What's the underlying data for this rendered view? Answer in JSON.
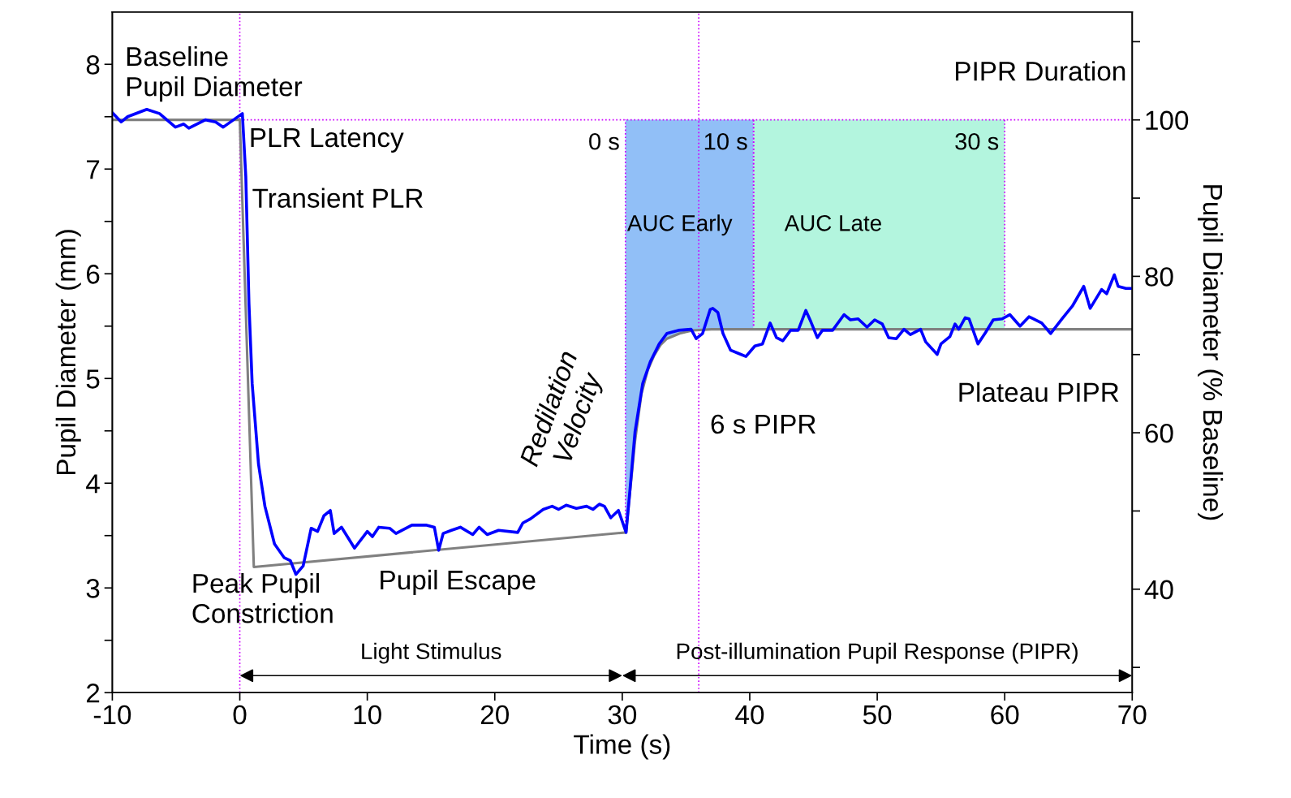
{
  "chart_data": {
    "type": "line",
    "xlabel": "Time (s)",
    "ylabel": "Pupil Diameter (mm)",
    "y2label": "Pupil Diameter (% Baseline)",
    "xlim": [
      -10,
      70
    ],
    "xticks": [
      -10,
      0,
      10,
      20,
      30,
      40,
      50,
      60,
      70
    ],
    "ylim": [
      2,
      8.5
    ],
    "yticks": [
      2,
      {
        "value": 2.5,
        "label": null
      },
      3,
      {
        "value": 3.5,
        "label": null
      },
      4,
      {
        "value": 4.5,
        "label": null
      },
      5,
      {
        "value": 5.5,
        "label": null
      },
      6,
      {
        "value": 6.5,
        "label": null
      },
      7,
      {
        "value": 7.5,
        "label": null
      },
      8
    ],
    "y2lim": [
      26.77,
      113.8
    ],
    "y2ticks": [
      {
        "value": 30,
        "label": null
      },
      40,
      {
        "value": 50,
        "label": null
      },
      60,
      {
        "value": 70,
        "label": null
      },
      80,
      {
        "value": 90,
        "label": null
      },
      100,
      {
        "value": 110,
        "label": null
      }
    ],
    "grid": false,
    "legend": false,
    "line_style": "solid",
    "marker": "none",
    "series": [
      {
        "color": "#808080",
        "x": [
          -10,
          0,
          1.1,
          30.3,
          31.0,
          31.5,
          32.0,
          32.5,
          33.0,
          33.5,
          34.5,
          35.5,
          37,
          70
        ],
        "values": [
          7.47,
          7.47,
          3.2,
          3.53,
          4.4,
          4.85,
          5.08,
          5.22,
          5.32,
          5.38,
          5.43,
          5.46,
          5.47,
          5.47
        ]
      },
      {
        "color": "#0000ff",
        "x": [
          -9.94,
          -9.3,
          -8.8,
          -7.3,
          -6.3,
          -5.05,
          -4.4,
          -4.0,
          -2.7,
          -1.9,
          -1.3,
          0.2,
          0.47,
          0.72,
          0.97,
          1.47,
          1.97,
          2.72,
          3.47,
          3.97,
          4.4,
          4.97,
          5.6,
          6.1,
          6.6,
          7.1,
          7.4,
          7.98,
          9.0,
          10.0,
          10.4,
          10.9,
          11.75,
          12.25,
          13.5,
          14.6,
          15.26,
          15.6,
          15.95,
          16.6,
          17.3,
          18.27,
          18.77,
          19.4,
          20.3,
          21.8,
          22.2,
          22.8,
          23.8,
          24.5,
          25.0,
          25.6,
          26.4,
          27.2,
          27.7,
          28.2,
          28.6,
          29.1,
          29.7,
          30.3,
          30.6,
          31.0,
          31.6,
          32.2,
          32.9,
          33.5,
          34.4,
          35.4,
          35.8,
          36.3,
          36.9,
          37.1,
          37.5,
          37.9,
          38.5,
          39.1,
          39.7,
          40.4,
          41.0,
          41.6,
          42.1,
          42.6,
          43.2,
          43.8,
          44.4,
          44.8,
          45.3,
          45.7,
          46.5,
          47.4,
          47.9,
          48.5,
          49.2,
          49.8,
          50.4,
          50.9,
          51.5,
          52.1,
          52.6,
          53.4,
          53.8,
          54.7,
          55.0,
          55.7,
          56.1,
          56.4,
          56.9,
          57.2,
          57.9,
          58.5,
          59.1,
          59.8,
          60.4,
          61.2,
          61.9,
          62.9,
          63.6,
          64.5,
          65.3,
          66.2,
          66.7,
          67.6,
          68.0,
          68.6,
          68.9,
          69.5,
          70.0
        ],
        "values": [
          7.53,
          7.45,
          7.5,
          7.57,
          7.53,
          7.4,
          7.43,
          7.39,
          7.47,
          7.45,
          7.4,
          7.53,
          6.93,
          5.71,
          4.95,
          4.18,
          3.78,
          3.42,
          3.29,
          3.26,
          3.13,
          3.21,
          3.57,
          3.54,
          3.69,
          3.74,
          3.52,
          3.58,
          3.38,
          3.54,
          3.49,
          3.58,
          3.57,
          3.52,
          3.6,
          3.6,
          3.58,
          3.36,
          3.52,
          3.55,
          3.58,
          3.51,
          3.58,
          3.51,
          3.55,
          3.53,
          3.62,
          3.66,
          3.75,
          3.78,
          3.75,
          3.79,
          3.76,
          3.78,
          3.75,
          3.8,
          3.78,
          3.67,
          3.74,
          3.53,
          3.93,
          4.49,
          4.95,
          5.16,
          5.33,
          5.43,
          5.46,
          5.47,
          5.38,
          5.43,
          5.66,
          5.67,
          5.63,
          5.43,
          5.27,
          5.24,
          5.21,
          5.31,
          5.33,
          5.53,
          5.39,
          5.36,
          5.46,
          5.46,
          5.65,
          5.54,
          5.39,
          5.46,
          5.46,
          5.61,
          5.56,
          5.57,
          5.49,
          5.56,
          5.52,
          5.39,
          5.38,
          5.47,
          5.42,
          5.47,
          5.35,
          5.23,
          5.33,
          5.4,
          5.52,
          5.47,
          5.58,
          5.57,
          5.33,
          5.44,
          5.56,
          5.57,
          5.61,
          5.5,
          5.59,
          5.53,
          5.43,
          5.57,
          5.69,
          5.88,
          5.67,
          5.85,
          5.81,
          5.99,
          5.88,
          5.86,
          5.86
        ]
      }
    ],
    "ref_lines": [
      {
        "axis": "x",
        "value": 0,
        "color": "#cc00ff",
        "line_style": "dotted"
      },
      {
        "axis": "x",
        "value": 36,
        "color": "#cc00ff",
        "line_style": "dotted"
      },
      {
        "axis": "y",
        "value": 7.47,
        "color": "#cc00ff",
        "line_style": "dotted"
      }
    ],
    "annotations": [
      "Baseline\nPupil Diameter",
      "PLR Latency",
      "Transient PLR",
      "Peak Pupil\nConstriction",
      "Pupil Escape",
      "Redilation\nVelocity",
      "6 s PIPR",
      {
        "text": "Plateau PIPR",
        "x": 60.0,
        "y": 5.47
      },
      {
        "text": "PIPR Duration",
        "x": 70,
        "y": 7.47
      },
      {
        "text": "0 s",
        "x": 30.25,
        "y": 7.47
      },
      {
        "text": "10 s",
        "x": 40.3,
        "y": 7.47
      },
      {
        "text": "30 s",
        "x": 60.0,
        "y": 7.47
      },
      "AUC Early",
      "AUC Late",
      "Light Stimulus",
      "Post-illumination Pupil Response (PIPR)"
    ]
  }
}
